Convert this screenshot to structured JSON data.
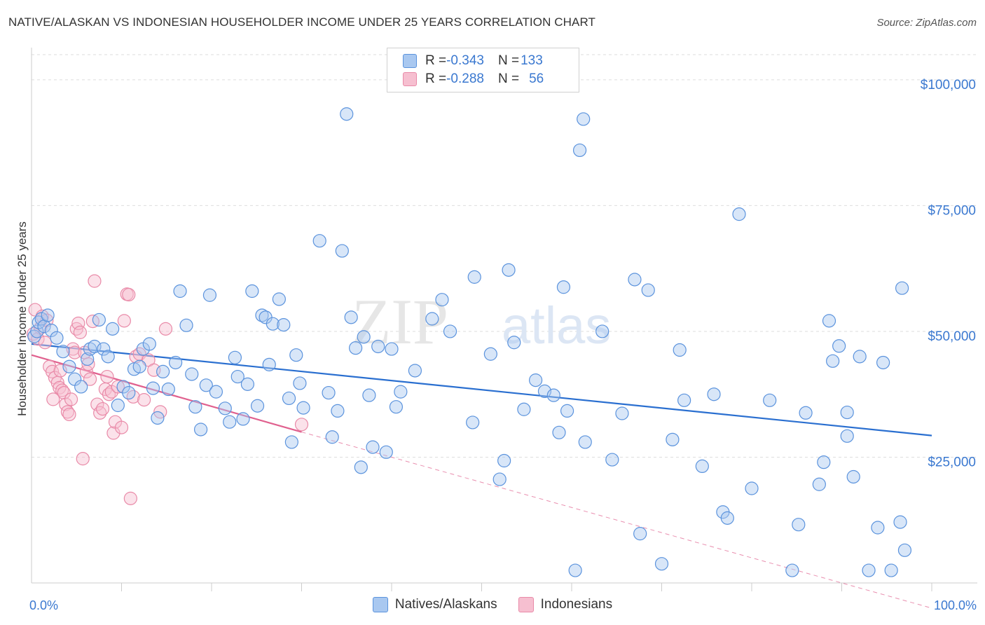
{
  "title": "NATIVE/ALASKAN VS INDONESIAN HOUSEHOLDER INCOME UNDER 25 YEARS CORRELATION CHART",
  "source": "Source: ZipAtlas.com",
  "watermark": {
    "zip": "ZIP",
    "atlas": "atlas"
  },
  "legend": {
    "rows": [
      {
        "r_label": "R = ",
        "r_value": "-0.343",
        "n_label": "N = ",
        "n_value": "133"
      },
      {
        "r_label": "R = ",
        "r_value": "-0.288",
        "n_label": "N = ",
        "n_value": "56"
      }
    ]
  },
  "bottom_legend": [
    "Natives/Alaskans",
    "Indonesians"
  ],
  "colors": {
    "blue_fill": "#a9c8f0",
    "blue_stroke": "#5b93dd",
    "blue_line": "#2a6fd0",
    "pink_fill": "#f6bfd0",
    "pink_stroke": "#e98aa8",
    "pink_line": "#e0608e",
    "axis_label": "#3a78d0",
    "grid": "#dddddd"
  },
  "chart_data": {
    "type": "scatter",
    "title": "NATIVE/ALASKAN VS INDONESIAN HOUSEHOLDER INCOME UNDER 25 YEARS CORRELATION CHART",
    "xlabel": "",
    "ylabel": "Householder Income Under 25 years",
    "xlim": [
      0,
      100
    ],
    "ylim": [
      0,
      105000
    ],
    "x_tick_labels": [
      "0.0%",
      "100.0%"
    ],
    "y_ticks": [
      25000,
      50000,
      75000,
      100000
    ],
    "y_tick_labels": [
      "$25,000",
      "$50,000",
      "$75,000",
      "$100,000"
    ],
    "grid": true,
    "series": [
      {
        "name": "Natives/Alaskans",
        "trend": {
          "x": [
            0,
            100
          ],
          "y": [
            47500,
            29300
          ]
        },
        "points": [
          [
            0.3,
            49000
          ],
          [
            0.6,
            50000
          ],
          [
            0.8,
            51800
          ],
          [
            1.1,
            52500
          ],
          [
            1.4,
            51000
          ],
          [
            1.8,
            53200
          ],
          [
            2.2,
            50200
          ],
          [
            2.8,
            48700
          ],
          [
            3.5,
            46000
          ],
          [
            4.2,
            43000
          ],
          [
            4.8,
            40500
          ],
          [
            5.5,
            39000
          ],
          [
            6.2,
            44500
          ],
          [
            6.5,
            46500
          ],
          [
            7.0,
            47000
          ],
          [
            7.5,
            52300
          ],
          [
            8.0,
            46500
          ],
          [
            8.5,
            45000
          ],
          [
            9.0,
            50500
          ],
          [
            9.6,
            35300
          ],
          [
            10.2,
            39000
          ],
          [
            10.8,
            37800
          ],
          [
            11.4,
            42500
          ],
          [
            12.0,
            43000
          ],
          [
            12.4,
            46500
          ],
          [
            13.1,
            47500
          ],
          [
            13.5,
            38700
          ],
          [
            14.0,
            32800
          ],
          [
            14.6,
            42000
          ],
          [
            15.2,
            38500
          ],
          [
            16.0,
            43800
          ],
          [
            16.5,
            58000
          ],
          [
            17.2,
            51200
          ],
          [
            17.8,
            41500
          ],
          [
            18.2,
            35000
          ],
          [
            18.8,
            30500
          ],
          [
            19.4,
            39300
          ],
          [
            19.8,
            57200
          ],
          [
            20.5,
            38000
          ],
          [
            21.5,
            34700
          ],
          [
            22.0,
            32000
          ],
          [
            22.6,
            44800
          ],
          [
            22.9,
            41000
          ],
          [
            23.5,
            32600
          ],
          [
            24.0,
            39500
          ],
          [
            24.5,
            58000
          ],
          [
            25.1,
            35200
          ],
          [
            25.6,
            53200
          ],
          [
            26.0,
            52800
          ],
          [
            26.4,
            43400
          ],
          [
            26.8,
            51500
          ],
          [
            27.5,
            56400
          ],
          [
            28.0,
            51300
          ],
          [
            28.6,
            36700
          ],
          [
            28.9,
            28000
          ],
          [
            29.4,
            45300
          ],
          [
            29.8,
            39700
          ],
          [
            30.2,
            34800
          ],
          [
            32.0,
            68000
          ],
          [
            33.0,
            37800
          ],
          [
            33.4,
            29000
          ],
          [
            34.0,
            34200
          ],
          [
            34.5,
            66000
          ],
          [
            35.0,
            93200
          ],
          [
            35.5,
            52800
          ],
          [
            36.0,
            46700
          ],
          [
            36.6,
            23000
          ],
          [
            36.9,
            48900
          ],
          [
            37.5,
            37300
          ],
          [
            37.9,
            27000
          ],
          [
            38.5,
            47000
          ],
          [
            39.4,
            26000
          ],
          [
            40.0,
            46500
          ],
          [
            40.5,
            35000
          ],
          [
            41.0,
            38000
          ],
          [
            42.6,
            42200
          ],
          [
            44.5,
            52500
          ],
          [
            45.6,
            56300
          ],
          [
            46.5,
            50000
          ],
          [
            49.0,
            31900
          ],
          [
            49.2,
            60800
          ],
          [
            51.0,
            45500
          ],
          [
            52.0,
            20600
          ],
          [
            52.5,
            24300
          ],
          [
            53.0,
            62200
          ],
          [
            53.6,
            47800
          ],
          [
            54.7,
            34500
          ],
          [
            56.0,
            40300
          ],
          [
            57.0,
            38100
          ],
          [
            58.0,
            37300
          ],
          [
            58.6,
            29900
          ],
          [
            59.1,
            58800
          ],
          [
            59.5,
            34200
          ],
          [
            60.4,
            2500
          ],
          [
            61.3,
            92200
          ],
          [
            60.9,
            86000
          ],
          [
            61.5,
            28000
          ],
          [
            63.4,
            50000
          ],
          [
            64.5,
            24500
          ],
          [
            65.6,
            33700
          ],
          [
            67.0,
            60300
          ],
          [
            67.6,
            9800
          ],
          [
            68.5,
            58200
          ],
          [
            70.0,
            3800
          ],
          [
            71.2,
            28500
          ],
          [
            72.0,
            46300
          ],
          [
            72.5,
            36300
          ],
          [
            74.5,
            23200
          ],
          [
            75.8,
            37500
          ],
          [
            76.8,
            14100
          ],
          [
            77.3,
            12900
          ],
          [
            78.6,
            73300
          ],
          [
            80.0,
            18800
          ],
          [
            82.0,
            36300
          ],
          [
            84.5,
            2500
          ],
          [
            85.2,
            11600
          ],
          [
            86.0,
            33800
          ],
          [
            87.5,
            19600
          ],
          [
            88.6,
            52100
          ],
          [
            89.0,
            44100
          ],
          [
            89.7,
            47100
          ],
          [
            90.6,
            29200
          ],
          [
            91.3,
            21100
          ],
          [
            90.6,
            33900
          ],
          [
            93.0,
            2500
          ],
          [
            94.0,
            11000
          ],
          [
            94.6,
            43800
          ],
          [
            95.5,
            2500
          ],
          [
            96.5,
            12100
          ],
          [
            96.7,
            58600
          ],
          [
            97.0,
            6500
          ],
          [
            92.0,
            45000
          ],
          [
            88.0,
            24000
          ]
        ]
      },
      {
        "name": "Indonesians",
        "trend": {
          "x": [
            0,
            30
          ],
          "y": [
            45300,
            30000
          ]
        },
        "trend_extended": {
          "x": [
            30,
            100
          ],
          "y": [
            30000,
            -5000
          ]
        },
        "points": [
          [
            0.2,
            49500
          ],
          [
            0.4,
            54300
          ],
          [
            0.7,
            48500
          ],
          [
            1.0,
            50700
          ],
          [
            1.2,
            53000
          ],
          [
            1.5,
            47800
          ],
          [
            1.7,
            52200
          ],
          [
            2.0,
            43000
          ],
          [
            2.3,
            42000
          ],
          [
            2.6,
            40800
          ],
          [
            2.9,
            39800
          ],
          [
            3.1,
            38800
          ],
          [
            3.4,
            38300
          ],
          [
            3.6,
            37800
          ],
          [
            3.8,
            35500
          ],
          [
            4.0,
            34000
          ],
          [
            4.2,
            33500
          ],
          [
            4.4,
            36500
          ],
          [
            4.6,
            46500
          ],
          [
            4.8,
            45800
          ],
          [
            5.0,
            50500
          ],
          [
            5.2,
            51600
          ],
          [
            5.4,
            49800
          ],
          [
            5.7,
            24700
          ],
          [
            5.9,
            45800
          ],
          [
            6.1,
            42000
          ],
          [
            6.3,
            43500
          ],
          [
            6.5,
            40500
          ],
          [
            6.8,
            52000
          ],
          [
            7.0,
            60000
          ],
          [
            7.3,
            35500
          ],
          [
            7.6,
            33800
          ],
          [
            7.9,
            34600
          ],
          [
            8.2,
            38500
          ],
          [
            8.4,
            41000
          ],
          [
            8.6,
            37500
          ],
          [
            8.9,
            38000
          ],
          [
            9.1,
            29800
          ],
          [
            9.3,
            32000
          ],
          [
            9.6,
            39000
          ],
          [
            10.0,
            30900
          ],
          [
            10.3,
            52100
          ],
          [
            10.6,
            57400
          ],
          [
            10.8,
            57300
          ],
          [
            11.0,
            16800
          ],
          [
            11.3,
            37000
          ],
          [
            11.6,
            45000
          ],
          [
            12.0,
            45500
          ],
          [
            12.5,
            36400
          ],
          [
            13.0,
            44300
          ],
          [
            13.6,
            42300
          ],
          [
            14.3,
            34000
          ],
          [
            14.9,
            50500
          ],
          [
            3.2,
            42200
          ],
          [
            2.4,
            36500
          ],
          [
            30.0,
            31500
          ]
        ]
      }
    ]
  }
}
